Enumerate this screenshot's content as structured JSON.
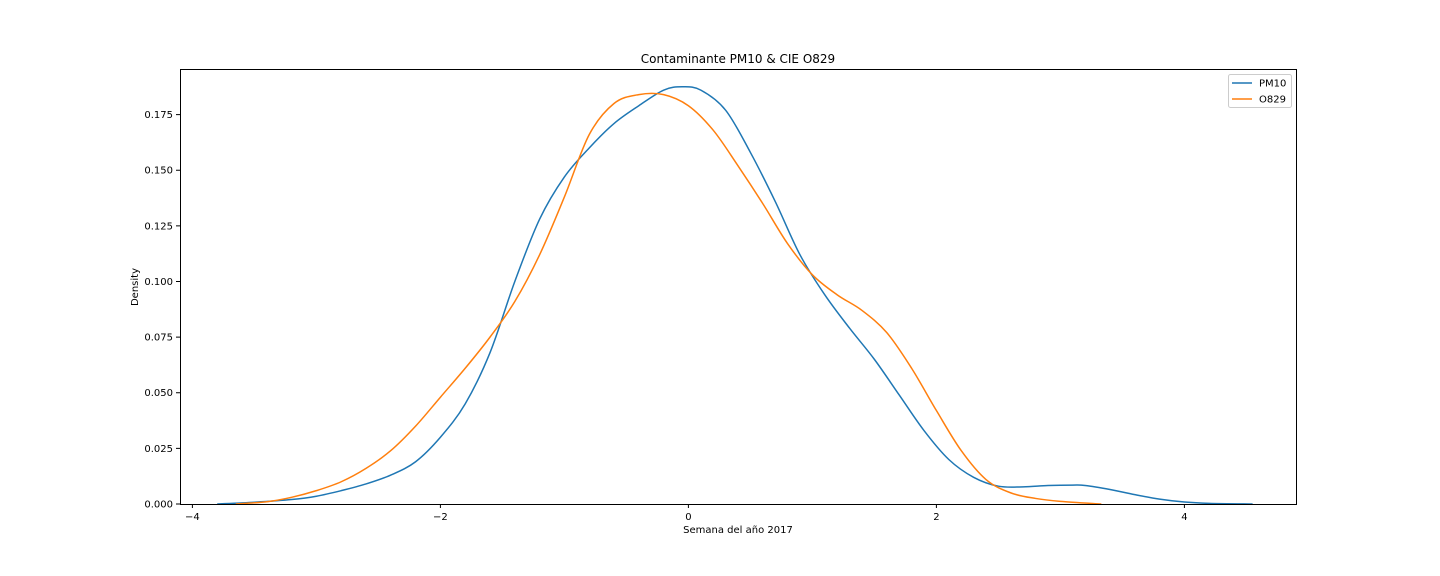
{
  "chart_data": {
    "type": "line",
    "title": "Contaminante PM10 & CIE O829",
    "xlabel": "Semana del año 2017",
    "ylabel": "Density",
    "xlim": [
      -4.1,
      4.9
    ],
    "ylim": [
      0,
      0.1955
    ],
    "x_ticks": [
      -4,
      -2,
      0,
      2,
      4
    ],
    "x_tick_labels": [
      "−4",
      "−2",
      "0",
      "2",
      "4"
    ],
    "y_ticks": [
      0,
      0.025,
      0.05,
      0.075,
      0.1,
      0.125,
      0.15,
      0.175
    ],
    "y_tick_labels": [
      "0.000",
      "0.025",
      "0.050",
      "0.075",
      "0.100",
      "0.125",
      "0.150",
      "0.175"
    ],
    "grid": false,
    "legend_position": "top-right",
    "series": [
      {
        "name": "PM10",
        "color": "#1f77b4",
        "x": [
          -3.8,
          -3.5,
          -3.2,
          -3.0,
          -2.8,
          -2.6,
          -2.4,
          -2.2,
          -2.0,
          -1.8,
          -1.6,
          -1.4,
          -1.2,
          -1.0,
          -0.8,
          -0.6,
          -0.4,
          -0.2,
          -0.05,
          0.1,
          0.3,
          0.5,
          0.7,
          0.9,
          1.1,
          1.3,
          1.5,
          1.7,
          1.9,
          2.1,
          2.3,
          2.5,
          2.7,
          2.9,
          3.1,
          3.2,
          3.4,
          3.6,
          3.8,
          4.0,
          4.2,
          4.55
        ],
        "values": [
          0.0,
          0.0008,
          0.002,
          0.0035,
          0.006,
          0.009,
          0.013,
          0.019,
          0.03,
          0.045,
          0.068,
          0.1,
          0.128,
          0.147,
          0.16,
          0.171,
          0.179,
          0.186,
          0.1875,
          0.186,
          0.177,
          0.158,
          0.136,
          0.112,
          0.094,
          0.079,
          0.065,
          0.049,
          0.033,
          0.02,
          0.012,
          0.008,
          0.0077,
          0.0083,
          0.0085,
          0.0083,
          0.0065,
          0.0042,
          0.0022,
          0.0009,
          0.0003,
          0.0
        ]
      },
      {
        "name": "O829",
        "color": "#ff7f0e",
        "x": [
          -3.65,
          -3.4,
          -3.2,
          -3.0,
          -2.8,
          -2.6,
          -2.4,
          -2.2,
          -2.0,
          -1.8,
          -1.6,
          -1.4,
          -1.2,
          -1.0,
          -0.8,
          -0.6,
          -0.4,
          -0.2,
          0.0,
          0.2,
          0.4,
          0.6,
          0.8,
          1.0,
          1.2,
          1.4,
          1.6,
          1.8,
          2.0,
          2.2,
          2.4,
          2.6,
          2.8,
          3.0,
          3.33
        ],
        "values": [
          0.0,
          0.001,
          0.003,
          0.006,
          0.01,
          0.016,
          0.024,
          0.035,
          0.048,
          0.061,
          0.075,
          0.091,
          0.112,
          0.138,
          0.166,
          0.18,
          0.184,
          0.184,
          0.179,
          0.168,
          0.152,
          0.135,
          0.117,
          0.103,
          0.094,
          0.087,
          0.077,
          0.061,
          0.042,
          0.024,
          0.011,
          0.005,
          0.0025,
          0.0012,
          0.0
        ]
      }
    ]
  }
}
